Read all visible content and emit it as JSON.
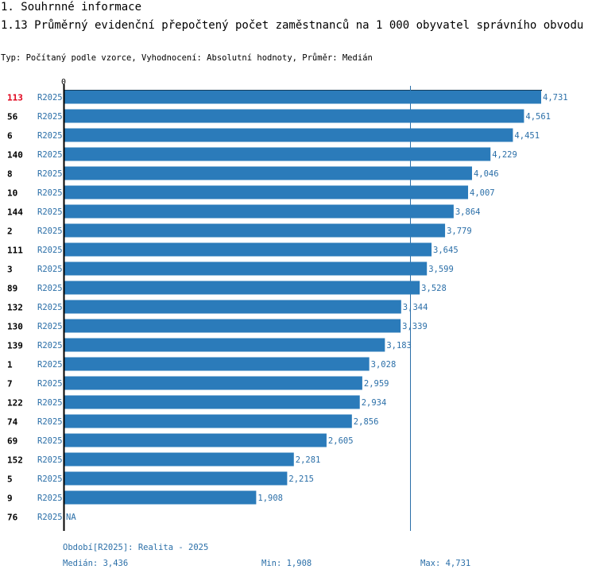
{
  "header": {
    "section_title": "1. Souhrnné informace",
    "chart_title": "1.13 Průměrný evidenční přepočtený počet zaměstnanců na 1 000 obyvatel správního obvodu",
    "subtitle": "Typ: Počítaný podle vzorce, Vyhodnocení: Absolutní hodnoty, Průměr: Medián"
  },
  "chart_data": {
    "type": "bar",
    "orientation": "horizontal",
    "axis_zero_label": "0",
    "xlim": [
      0,
      4731
    ],
    "series_label": "R2025",
    "highlight_color": "#e0001a",
    "bar_color": "#2b7bba",
    "rows": [
      {
        "id": "113",
        "value": 4731,
        "label": "4,731",
        "highlight": true
      },
      {
        "id": "56",
        "value": 4561,
        "label": "4,561"
      },
      {
        "id": "6",
        "value": 4451,
        "label": "4,451"
      },
      {
        "id": "140",
        "value": 4229,
        "label": "4,229"
      },
      {
        "id": "8",
        "value": 4046,
        "label": "4,046"
      },
      {
        "id": "10",
        "value": 4007,
        "label": "4,007"
      },
      {
        "id": "144",
        "value": 3864,
        "label": "3,864"
      },
      {
        "id": "2",
        "value": 3779,
        "label": "3,779"
      },
      {
        "id": "111",
        "value": 3645,
        "label": "3,645"
      },
      {
        "id": "3",
        "value": 3599,
        "label": "3,599"
      },
      {
        "id": "89",
        "value": 3528,
        "label": "3,528"
      },
      {
        "id": "132",
        "value": 3344,
        "label": "3,344"
      },
      {
        "id": "130",
        "value": 3339,
        "label": "3,339"
      },
      {
        "id": "139",
        "value": 3183,
        "label": "3,183"
      },
      {
        "id": "1",
        "value": 3028,
        "label": "3,028"
      },
      {
        "id": "7",
        "value": 2959,
        "label": "2,959"
      },
      {
        "id": "122",
        "value": 2934,
        "label": "2,934"
      },
      {
        "id": "74",
        "value": 2856,
        "label": "2,856"
      },
      {
        "id": "69",
        "value": 2605,
        "label": "2,605"
      },
      {
        "id": "152",
        "value": 2281,
        "label": "2,281"
      },
      {
        "id": "5",
        "value": 2215,
        "label": "2,215"
      },
      {
        "id": "9",
        "value": 1908,
        "label": "1,908"
      },
      {
        "id": "76",
        "value": null,
        "label": "NA"
      }
    ],
    "median_value": 3436
  },
  "footer": {
    "period": "Období[R2025]: Realita - 2025",
    "median": "Medián: 3,436",
    "min": "Min: 1,908",
    "max": "Max: 4,731"
  }
}
